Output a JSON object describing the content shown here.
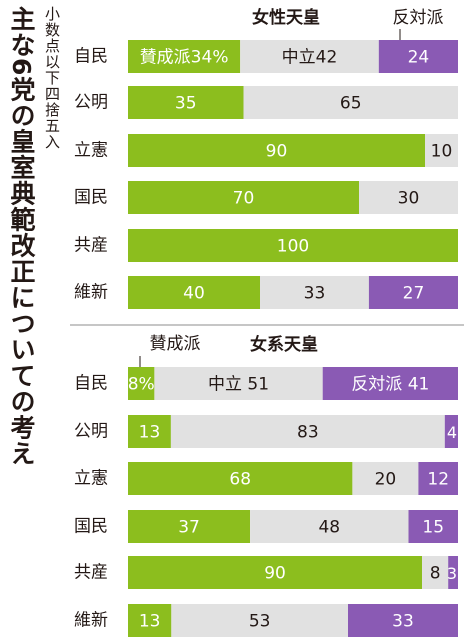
{
  "title": "主な6党の皇室典範改正についての考え",
  "note": "小数点以下四捨五入",
  "colors": {
    "support": "#8cbe1e",
    "neutral": "#e1e1e1",
    "oppose": "#8a5ab4",
    "text": "#231815"
  },
  "chart_data": [
    {
      "type": "bar",
      "stacked": true,
      "orientation": "horizontal",
      "title": "女性天皇",
      "categories": [
        "自民",
        "公明",
        "立憲",
        "国民",
        "共産",
        "維新"
      ],
      "series": [
        {
          "name": "賛成派",
          "values": [
            34,
            35,
            90,
            70,
            100,
            40
          ]
        },
        {
          "name": "中立",
          "values": [
            42,
            65,
            10,
            30,
            0,
            33
          ]
        },
        {
          "name": "反対派",
          "values": [
            24,
            0,
            0,
            0,
            0,
            27
          ]
        }
      ],
      "first_row_labels": [
        "賛成派34%",
        "中立42",
        "24"
      ],
      "legend_label": "反対派",
      "xlim": [
        0,
        100
      ]
    },
    {
      "type": "bar",
      "stacked": true,
      "orientation": "horizontal",
      "title": "女系天皇",
      "categories": [
        "自民",
        "公明",
        "立憲",
        "国民",
        "共産",
        "維新"
      ],
      "series": [
        {
          "name": "賛成派",
          "values": [
            8,
            13,
            68,
            37,
            90,
            13
          ]
        },
        {
          "name": "中立",
          "values": [
            51,
            83,
            20,
            48,
            8,
            53
          ]
        },
        {
          "name": "反対派",
          "values": [
            41,
            4,
            12,
            15,
            3,
            33
          ]
        }
      ],
      "first_row_labels": [
        "8%",
        "中立 51",
        "反対派 41"
      ],
      "legend_label": "賛成派",
      "xlim": [
        0,
        100
      ]
    }
  ]
}
